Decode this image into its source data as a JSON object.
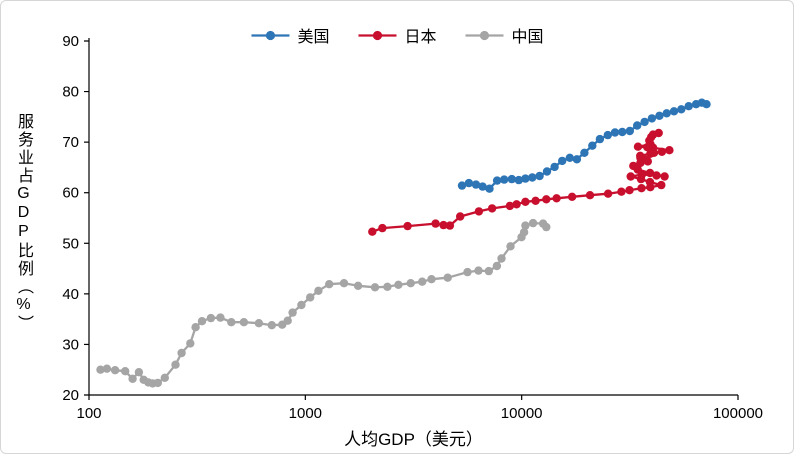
{
  "chart": {
    "background": "#FFFFFF",
    "border_color": "#D6D6D6",
    "axis_color": "#000000",
    "text_color": "#000000"
  },
  "chart_data": {
    "type": "line",
    "x_scale": "log",
    "title": "",
    "xlabel": "人均GDP（美元）",
    "ylabel": "服务业占GDP比例（%）",
    "xlim": [
      100,
      100000
    ],
    "ylim": [
      20,
      90
    ],
    "x_ticks": [
      100,
      1000,
      10000,
      100000
    ],
    "y_ticks": [
      20,
      30,
      40,
      50,
      60,
      70,
      80,
      90
    ],
    "grid": false,
    "legend_position": "top-center",
    "series": [
      {
        "name": "美国",
        "color": "#2E75B6",
        "points": [
          [
            5300,
            61.4
          ],
          [
            5700,
            61.9
          ],
          [
            6150,
            61.6
          ],
          [
            6600,
            61.2
          ],
          [
            7100,
            60.8
          ],
          [
            7700,
            62.4
          ],
          [
            8300,
            62.6
          ],
          [
            9000,
            62.7
          ],
          [
            9700,
            62.5
          ],
          [
            10400,
            62.8
          ],
          [
            11200,
            63.0
          ],
          [
            12100,
            63.3
          ],
          [
            13100,
            64.2
          ],
          [
            14200,
            65.1
          ],
          [
            15400,
            66.3
          ],
          [
            16700,
            66.9
          ],
          [
            18000,
            66.6
          ],
          [
            19500,
            67.9
          ],
          [
            21200,
            69.3
          ],
          [
            23000,
            70.6
          ],
          [
            25000,
            71.4
          ],
          [
            27000,
            71.9
          ],
          [
            29200,
            72.0
          ],
          [
            31600,
            72.2
          ],
          [
            34200,
            73.3
          ],
          [
            37000,
            74.0
          ],
          [
            40000,
            74.7
          ],
          [
            43300,
            75.2
          ],
          [
            46800,
            75.7
          ],
          [
            50600,
            76.1
          ],
          [
            54700,
            76.5
          ],
          [
            59200,
            77.1
          ],
          [
            64000,
            77.5
          ],
          [
            68000,
            77.8
          ],
          [
            71500,
            77.5
          ]
        ]
      },
      {
        "name": "日本",
        "color": "#C8102E",
        "points": [
          [
            2040,
            52.3
          ],
          [
            2270,
            53.0
          ],
          [
            2970,
            53.4
          ],
          [
            4000,
            53.9
          ],
          [
            4350,
            53.6
          ],
          [
            4660,
            53.5
          ],
          [
            5200,
            55.3
          ],
          [
            6340,
            56.3
          ],
          [
            7300,
            56.9
          ],
          [
            8820,
            57.4
          ],
          [
            9470,
            57.7
          ],
          [
            10400,
            58.2
          ],
          [
            11600,
            58.4
          ],
          [
            13000,
            58.7
          ],
          [
            14500,
            58.9
          ],
          [
            17100,
            59.2
          ],
          [
            20700,
            59.5
          ],
          [
            25100,
            59.8
          ],
          [
            28900,
            60.2
          ],
          [
            31500,
            60.5
          ],
          [
            35800,
            60.9
          ],
          [
            39300,
            61.1
          ],
          [
            44200,
            61.5
          ],
          [
            39200,
            62.1
          ],
          [
            35600,
            62.7
          ],
          [
            31900,
            63.2
          ],
          [
            36000,
            63.6
          ],
          [
            42000,
            63.4
          ],
          [
            45800,
            63.2
          ],
          [
            39200,
            63.9
          ],
          [
            34400,
            64.6
          ],
          [
            32800,
            65.3
          ],
          [
            35400,
            65.9
          ],
          [
            38300,
            66.2
          ],
          [
            37200,
            66.5
          ],
          [
            35400,
            66.9
          ],
          [
            35300,
            67.3
          ],
          [
            39300,
            67.7
          ],
          [
            40900,
            67.9
          ],
          [
            44500,
            68.1
          ],
          [
            48200,
            68.4
          ],
          [
            40500,
            68.9
          ],
          [
            38100,
            69.0
          ],
          [
            34500,
            69.1
          ],
          [
            39400,
            69.6
          ],
          [
            38900,
            70.3
          ],
          [
            39700,
            71.0
          ],
          [
            40500,
            71.5
          ],
          [
            43000,
            71.8
          ]
        ]
      },
      {
        "name": "中国",
        "color": "#A5A5A5",
        "points": [
          [
            113,
            25.0
          ],
          [
            121,
            25.2
          ],
          [
            132,
            24.9
          ],
          [
            147,
            24.7
          ],
          [
            159,
            23.2
          ],
          [
            170,
            24.5
          ],
          [
            179,
            23.0
          ],
          [
            188,
            22.5
          ],
          [
            197,
            22.3
          ],
          [
            208,
            22.4
          ],
          [
            224,
            23.4
          ],
          [
            251,
            26.0
          ],
          [
            268,
            28.3
          ],
          [
            294,
            30.2
          ],
          [
            311,
            33.4
          ],
          [
            333,
            34.6
          ],
          [
            366,
            35.2
          ],
          [
            405,
            35.3
          ],
          [
            455,
            34.4
          ],
          [
            520,
            34.4
          ],
          [
            610,
            34.2
          ],
          [
            700,
            33.8
          ],
          [
            782,
            33.9
          ],
          [
            829,
            34.7
          ],
          [
            873,
            36.3
          ],
          [
            959,
            37.8
          ],
          [
            1053,
            39.3
          ],
          [
            1149,
            40.6
          ],
          [
            1289,
            41.9
          ],
          [
            1509,
            42.1
          ],
          [
            1753,
            41.6
          ],
          [
            2099,
            41.3
          ],
          [
            2394,
            41.4
          ],
          [
            2694,
            41.8
          ],
          [
            3068,
            42.1
          ],
          [
            3468,
            42.4
          ],
          [
            3832,
            42.9
          ],
          [
            4550,
            43.2
          ],
          [
            5618,
            44.3
          ],
          [
            6317,
            44.6
          ],
          [
            7051,
            44.5
          ],
          [
            7679,
            45.5
          ],
          [
            8067,
            47.0
          ],
          [
            8879,
            49.4
          ],
          [
            9977,
            51.2
          ],
          [
            10262,
            52.2
          ],
          [
            10409,
            53.5
          ],
          [
            11300,
            54.0
          ],
          [
            12556,
            53.9
          ],
          [
            13000,
            53.2
          ]
        ]
      }
    ]
  }
}
